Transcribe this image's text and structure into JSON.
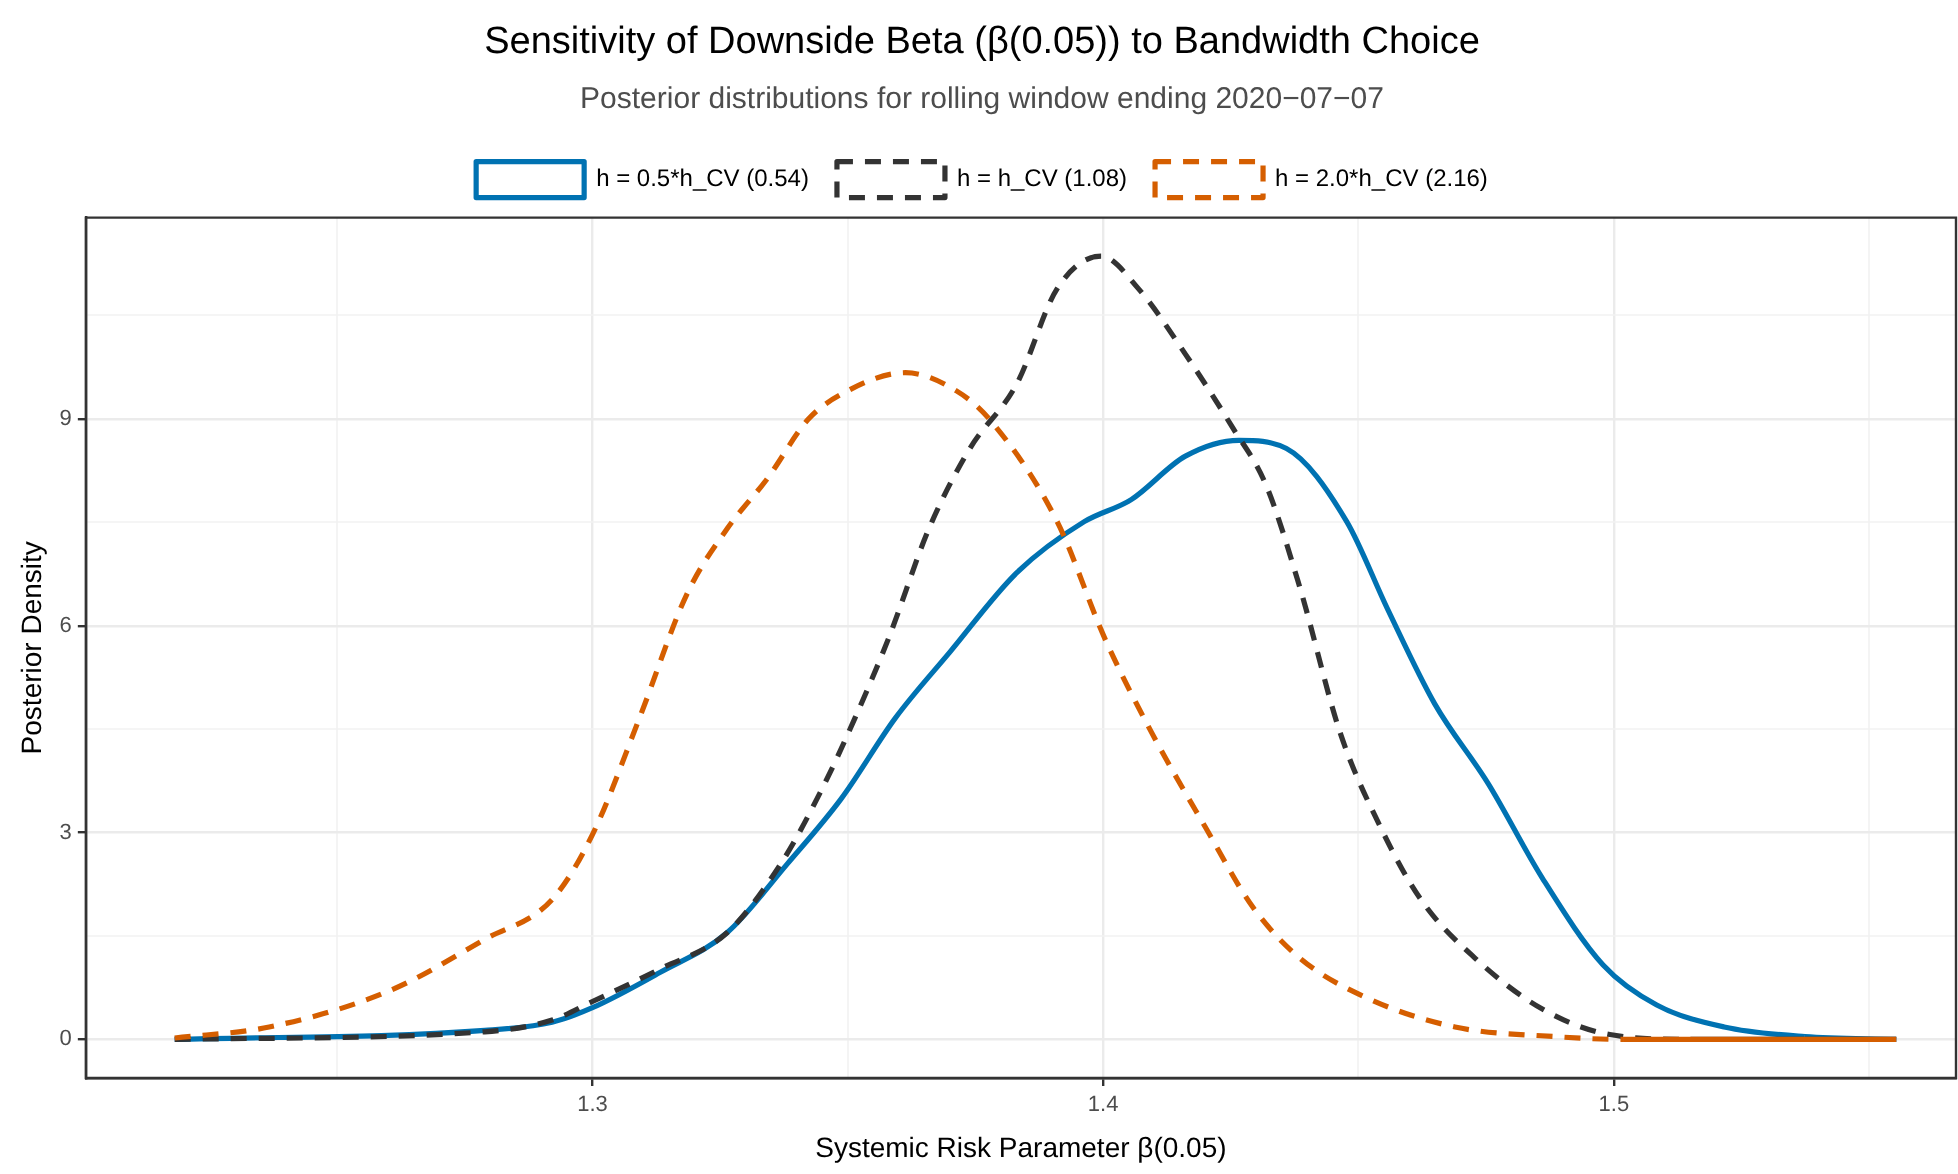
{
  "chart_data": {
    "type": "line",
    "title": "Sensitivity of Downside Beta (β(0.05)) to Bandwidth Choice",
    "subtitle": "Posterior distributions for rolling window ending 2020−07−07",
    "xlabel": "Systemic Risk Parameter β(0.05)",
    "ylabel": "Posterior Density",
    "xlim": [
      1.2008,
      1.567
    ],
    "ylim": [
      -0.56,
      11.92
    ],
    "xticks": [
      {
        "value": 1.25,
        "label": null
      },
      1.3,
      {
        "value": 1.35,
        "label": null
      },
      1.4,
      {
        "value": 1.45,
        "label": null
      },
      1.5,
      {
        "value": 1.55,
        "label": null
      }
    ],
    "yticks": [
      0,
      {
        "value": 1.5,
        "label": null
      },
      3,
      {
        "value": 4.5,
        "label": null
      },
      6,
      {
        "value": 7.5,
        "label": null
      },
      9,
      {
        "value": 10.5,
        "label": null
      }
    ],
    "grid": true,
    "legend": "top",
    "marker": "none",
    "series": [
      {
        "name": "h = 0.5*h_CV (0.54)",
        "color": "#0072b2",
        "line_style": "solid",
        "x": [
          1.2182,
          1.2789,
          1.2921,
          1.3,
          1.3132,
          1.3264,
          1.3382,
          1.3488,
          1.3593,
          1.3699,
          1.3831,
          1.3963,
          1.4055,
          1.4161,
          1.4266,
          1.4359,
          1.4477,
          1.4557,
          1.4649,
          1.4754,
          1.486,
          1.4979,
          1.5084,
          1.5216,
          1.5374,
          1.5553
        ],
        "values": [
          0,
          0.13,
          0.25,
          0.46,
          0.97,
          1.55,
          2.55,
          3.5,
          4.66,
          5.61,
          6.77,
          7.51,
          7.83,
          8.46,
          8.69,
          8.57,
          7.51,
          6.24,
          4.87,
          3.71,
          2.34,
          1.08,
          0.5,
          0.18,
          0.04,
          0
        ]
      },
      {
        "name": "h = h_CV (1.08)",
        "color": "#333333",
        "line_style": "dashed",
        "x": [
          1.2182,
          1.2789,
          1.2921,
          1.3,
          1.3132,
          1.3264,
          1.3369,
          1.3448,
          1.3514,
          1.358,
          1.3659,
          1.3739,
          1.3831,
          1.391,
          1.3996,
          1.4069,
          1.4161,
          1.4253,
          1.4319,
          1.4385,
          1.4464,
          1.4543,
          1.4622,
          1.4728,
          1.486,
          1.4992,
          1.515,
          1.5553
        ],
        "values": [
          0,
          0.11,
          0.28,
          0.55,
          1.02,
          1.55,
          2.55,
          3.61,
          4.66,
          5.82,
          7.41,
          8.57,
          9.51,
          10.89,
          11.36,
          10.89,
          9.94,
          8.88,
          8.04,
          6.56,
          4.45,
          3.08,
          2.03,
          1.18,
          0.44,
          0.07,
          0,
          0
        ]
      },
      {
        "name": "h = 2.0*h_CV (2.16)",
        "color": "#d55e00",
        "line_style": "dashed",
        "x": [
          1.2182,
          1.2367,
          1.2604,
          1.2789,
          1.2921,
          1.3,
          1.3092,
          1.3185,
          1.3264,
          1.3343,
          1.3422,
          1.3488,
          1.3613,
          1.3712,
          1.3778,
          1.391,
          1.4003,
          1.4095,
          1.42,
          1.4293,
          1.4385,
          1.4517,
          1.4689,
          1.4886,
          1.5018,
          1.5553
        ],
        "values": [
          0.02,
          0.18,
          0.71,
          1.45,
          2.03,
          2.97,
          4.66,
          6.46,
          7.41,
          8.14,
          8.99,
          9.36,
          9.67,
          9.41,
          8.99,
          7.51,
          5.82,
          4.45,
          3.08,
          1.92,
          1.18,
          0.6,
          0.18,
          0.04,
          0,
          0
        ]
      }
    ]
  }
}
